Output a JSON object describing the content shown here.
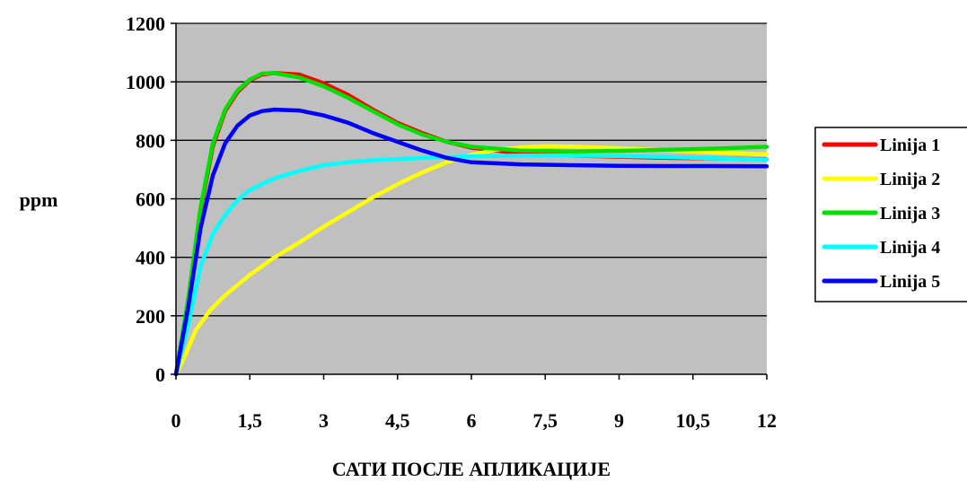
{
  "chart_data": {
    "type": "line",
    "title": "",
    "xlabel": "САТИ ПОСЛЕ АПЛИКАЦИЈЕ",
    "ylabel": "ppm",
    "xlim": [
      0,
      12
    ],
    "ylim": [
      0,
      1200
    ],
    "x_ticks": [
      "0",
      "1,5",
      "3",
      "4,5",
      "6",
      "7,5",
      "9",
      "10,5",
      "12"
    ],
    "y_ticks": [
      "0",
      "200",
      "400",
      "600",
      "800",
      "1000",
      "1200"
    ],
    "grid": "horizontal",
    "legend_position": "right",
    "background_color": "#c0c0c0",
    "series": [
      {
        "name": "Linija 1",
        "color": "#ff0000",
        "points": [
          [
            0,
            0
          ],
          [
            0.25,
            250
          ],
          [
            0.5,
            560
          ],
          [
            0.75,
            780
          ],
          [
            1,
            900
          ],
          [
            1.25,
            965
          ],
          [
            1.5,
            1005
          ],
          [
            1.75,
            1025
          ],
          [
            2,
            1030
          ],
          [
            2.5,
            1025
          ],
          [
            3,
            995
          ],
          [
            3.5,
            955
          ],
          [
            4,
            905
          ],
          [
            4.5,
            860
          ],
          [
            5,
            825
          ],
          [
            5.5,
            795
          ],
          [
            6,
            775
          ],
          [
            7,
            755
          ],
          [
            8,
            748
          ],
          [
            9,
            744
          ],
          [
            10,
            740
          ],
          [
            11,
            738
          ],
          [
            12,
            735
          ]
        ]
      },
      {
        "name": "Linija 2",
        "color": "#ffff00",
        "points": [
          [
            0,
            0
          ],
          [
            0.2,
            70
          ],
          [
            0.4,
            150
          ],
          [
            0.7,
            220
          ],
          [
            1,
            270
          ],
          [
            1.5,
            340
          ],
          [
            2,
            400
          ],
          [
            2.5,
            450
          ],
          [
            3,
            505
          ],
          [
            3.5,
            555
          ],
          [
            4,
            605
          ],
          [
            4.5,
            650
          ],
          [
            5,
            690
          ],
          [
            5.5,
            725
          ],
          [
            6,
            750
          ],
          [
            6.5,
            768
          ],
          [
            7,
            776
          ],
          [
            7.5,
            780
          ],
          [
            8,
            779
          ],
          [
            9,
            773
          ],
          [
            10,
            765
          ],
          [
            11,
            758
          ],
          [
            12,
            752
          ]
        ]
      },
      {
        "name": "Linija 3",
        "color": "#00e000",
        "points": [
          [
            0,
            0
          ],
          [
            0.25,
            260
          ],
          [
            0.5,
            570
          ],
          [
            0.75,
            790
          ],
          [
            1,
            905
          ],
          [
            1.25,
            970
          ],
          [
            1.5,
            1008
          ],
          [
            1.75,
            1028
          ],
          [
            2,
            1030
          ],
          [
            2.5,
            1015
          ],
          [
            3,
            985
          ],
          [
            3.5,
            945
          ],
          [
            4,
            900
          ],
          [
            4.5,
            855
          ],
          [
            5,
            820
          ],
          [
            5.5,
            795
          ],
          [
            6,
            778
          ],
          [
            7,
            765
          ],
          [
            8,
            762
          ],
          [
            9,
            764
          ],
          [
            10,
            768
          ],
          [
            11,
            772
          ],
          [
            12,
            778
          ]
        ]
      },
      {
        "name": "Linija 4",
        "color": "#00ffff",
        "points": [
          [
            0,
            0
          ],
          [
            0.25,
            170
          ],
          [
            0.5,
            370
          ],
          [
            0.75,
            480
          ],
          [
            1,
            545
          ],
          [
            1.25,
            595
          ],
          [
            1.5,
            630
          ],
          [
            2,
            670
          ],
          [
            2.5,
            695
          ],
          [
            3,
            715
          ],
          [
            3.5,
            725
          ],
          [
            4,
            732
          ],
          [
            5,
            740
          ],
          [
            6,
            745
          ],
          [
            7,
            748
          ],
          [
            8,
            748
          ],
          [
            9,
            746
          ],
          [
            10,
            743
          ],
          [
            11,
            738
          ],
          [
            12,
            734
          ]
        ]
      },
      {
        "name": "Linija 5",
        "color": "#0000ff",
        "points": [
          [
            0,
            0
          ],
          [
            0.25,
            230
          ],
          [
            0.5,
            500
          ],
          [
            0.75,
            680
          ],
          [
            1,
            790
          ],
          [
            1.25,
            850
          ],
          [
            1.5,
            885
          ],
          [
            1.75,
            900
          ],
          [
            2,
            905
          ],
          [
            2.5,
            902
          ],
          [
            3,
            885
          ],
          [
            3.5,
            860
          ],
          [
            4,
            825
          ],
          [
            4.5,
            795
          ],
          [
            5,
            765
          ],
          [
            5.5,
            740
          ],
          [
            6,
            725
          ],
          [
            7,
            718
          ],
          [
            8,
            715
          ],
          [
            9,
            713
          ],
          [
            10,
            712
          ],
          [
            11,
            712
          ],
          [
            12,
            711
          ]
        ]
      }
    ]
  }
}
